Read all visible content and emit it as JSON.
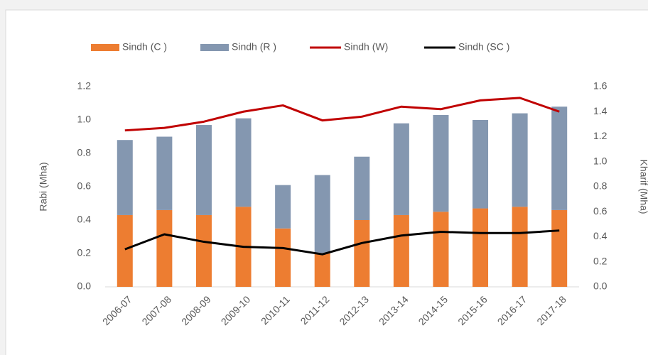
{
  "chart_data": {
    "type": "bar",
    "categories": [
      "2006-07",
      "2007-08",
      "2008-09",
      "2009-10",
      "2010-11",
      "2011-12",
      "2012-13",
      "2013-14",
      "2014-15",
      "2015-16",
      "2016-17",
      "2017-18"
    ],
    "ylabel": "Rabi (Mha)",
    "y2label": "Kharif (Mha)",
    "ylim": [
      0,
      1.2
    ],
    "yticks": [
      {
        "value": 0,
        "label": "0.0"
      },
      0.2,
      0.4,
      0.6,
      0.8,
      {
        "value": 1,
        "label": "1.0"
      },
      1.2
    ],
    "y2lim": [
      0,
      1.6
    ],
    "y2ticks": [
      {
        "value": 0,
        "label": "0.0"
      },
      0.2,
      0.4,
      0.6,
      0.8,
      {
        "value": 1,
        "label": "1.0"
      },
      1.2,
      1.4,
      1.6
    ],
    "series": [
      {
        "name": "Sindh (C )",
        "type": "bar",
        "color": "#ed7d31",
        "values": [
          0.43,
          0.46,
          0.43,
          0.48,
          0.35,
          0.2,
          0.4,
          0.43,
          0.45,
          0.47,
          0.48,
          0.46
        ]
      },
      {
        "name": "Sindh (R )",
        "type": "bar",
        "color": "#8497b0",
        "values": [
          0.45,
          0.44,
          0.54,
          0.53,
          0.26,
          0.47,
          0.38,
          0.55,
          0.58,
          0.53,
          0.56,
          0.62
        ]
      },
      {
        "name": "Sindh (W)",
        "type": "line",
        "axis": "y2",
        "color": "#c00000",
        "values": [
          1.25,
          1.27,
          1.32,
          1.4,
          1.45,
          1.33,
          1.36,
          1.44,
          1.42,
          1.49,
          1.51,
          1.4
        ]
      },
      {
        "name": "Sindh (SC )",
        "type": "line",
        "axis": "y2",
        "color": "#000000",
        "values": [
          0.3,
          0.42,
          0.36,
          0.32,
          0.31,
          0.26,
          0.35,
          0.41,
          0.44,
          0.43,
          0.43,
          0.45
        ]
      }
    ]
  }
}
